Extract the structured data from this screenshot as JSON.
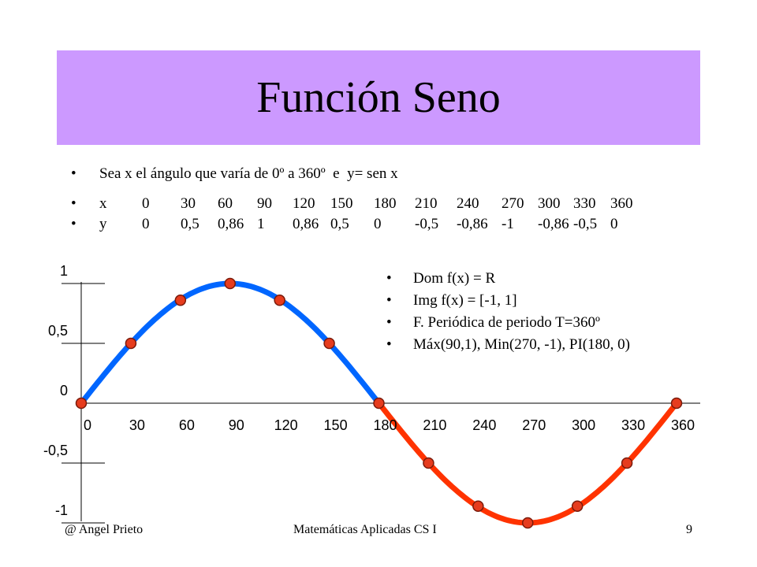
{
  "title": "Función Seno",
  "intro": {
    "bullet": "•",
    "text": "Sea x el ángulo que varía de 0º a 360º  e  y= sen x"
  },
  "table": {
    "x_label": "x",
    "x_values": [
      "0",
      "30",
      "60",
      "90",
      "120",
      "150",
      "180",
      "210",
      "240",
      "270",
      "300",
      "330",
      "360"
    ],
    "y_label": "y",
    "y_values": [
      "0",
      "0,5",
      "0,86",
      "1",
      "0,86",
      "0,5",
      "0",
      "-0,5",
      "-0,86",
      "-1",
      "-0,86",
      "-0,5",
      "0"
    ]
  },
  "properties": [
    "Dom f(x) = R",
    "Img f(x) = [-1, 1]",
    "F. Periódica de periodo T=360º",
    "Máx(90,1), Min(270, -1), PI(180, 0)"
  ],
  "chart_data": {
    "type": "line",
    "x": [
      0,
      30,
      60,
      90,
      120,
      150,
      180,
      210,
      240,
      270,
      300,
      330,
      360
    ],
    "y": [
      0,
      0.5,
      0.86,
      1,
      0.86,
      0.5,
      0,
      -0.5,
      -0.86,
      -1,
      -0.86,
      -0.5,
      0
    ],
    "x_tick_labels": [
      "0",
      "30",
      "60",
      "90",
      "120",
      "150",
      "180",
      "210",
      "240",
      "270",
      "300",
      "330",
      "360"
    ],
    "y_tick_values": [
      1,
      0.5,
      0,
      -0.5,
      -1
    ],
    "y_tick_labels": [
      "1",
      "0,5",
      "0",
      "-0,5",
      "-1"
    ],
    "xlim": [
      0,
      360
    ],
    "ylim": [
      -1,
      1
    ],
    "colors": {
      "positive_curve": "#0066ff",
      "negative_curve": "#ff3300",
      "marker_fill": "#e63c1e",
      "marker_stroke": "#7a1a0a"
    }
  },
  "footer": {
    "left": "@   Angel Prieto",
    "center": "Matemáticas Aplicadas CS I",
    "page": "9"
  }
}
